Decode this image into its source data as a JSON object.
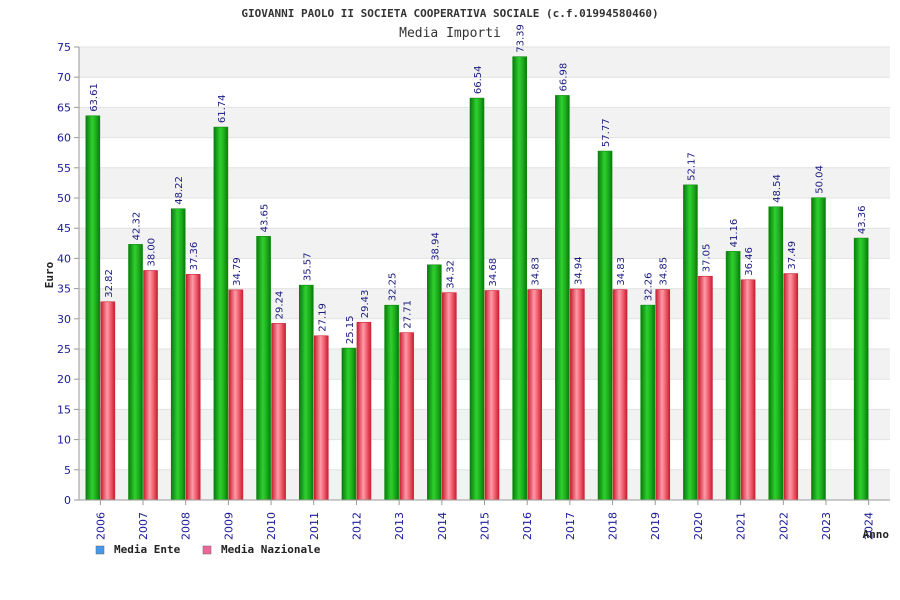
{
  "colors": {
    "ente_dark": "#0a8a0a",
    "ente_light": "#33dd33",
    "naz_dark": "#cc2233",
    "naz_light": "#ff8899",
    "legend_ente": "#4499ee",
    "legend_naz": "#ee6699",
    "band": "#f2f2f2",
    "axis": "#999999",
    "text": "#1a1a99"
  },
  "chart_data": {
    "type": "bar",
    "title": "GIOVANNI PAOLO II SOCIETA COOPERATIVA SOCIALE (c.f.01994580460)",
    "subtitle": "Media Importi",
    "xlabel": "Anno",
    "ylabel": "Euro",
    "ylim": [
      0,
      75
    ],
    "yticks": [
      0,
      5,
      10,
      15,
      20,
      25,
      30,
      35,
      40,
      45,
      50,
      55,
      60,
      65,
      70,
      75
    ],
    "grid": true,
    "legend_position": "bottom-left",
    "categories": [
      "2006",
      "2007",
      "2008",
      "2009",
      "2010",
      "2011",
      "2012",
      "2013",
      "2014",
      "2015",
      "2016",
      "2017",
      "2018",
      "2019",
      "2020",
      "2021",
      "2022",
      "2023",
      "2024"
    ],
    "series": [
      {
        "name": "Media Ente",
        "values": [
          63.61,
          42.32,
          48.22,
          61.74,
          43.65,
          35.57,
          25.15,
          32.25,
          38.94,
          66.54,
          73.39,
          66.98,
          57.77,
          32.26,
          52.17,
          41.16,
          48.54,
          50.04,
          43.36
        ],
        "labels": [
          "63.61",
          "42.32",
          "48.22",
          "61.74",
          "43.65",
          "35.57",
          "25.15",
          "32.25",
          "38.94",
          "66.54",
          "73.39",
          "66.98",
          "57.77",
          "32.26",
          "52.17",
          "41.16",
          "48.54",
          "50.04",
          "43.36"
        ]
      },
      {
        "name": "Media Nazionale",
        "values": [
          32.82,
          38.0,
          37.36,
          34.79,
          29.24,
          27.19,
          29.43,
          27.71,
          34.32,
          34.68,
          34.83,
          34.94,
          34.83,
          34.85,
          37.05,
          36.46,
          37.49,
          null,
          null
        ],
        "labels": [
          "32.82",
          "38.00",
          "37.36",
          "34.79",
          "29.24",
          "27.19",
          "29.43",
          "27.71",
          "34.32",
          "34.68",
          "34.83",
          "34.94",
          "34.83",
          "34.85",
          "37.05",
          "36.46",
          "37.49",
          "",
          ""
        ]
      }
    ]
  }
}
